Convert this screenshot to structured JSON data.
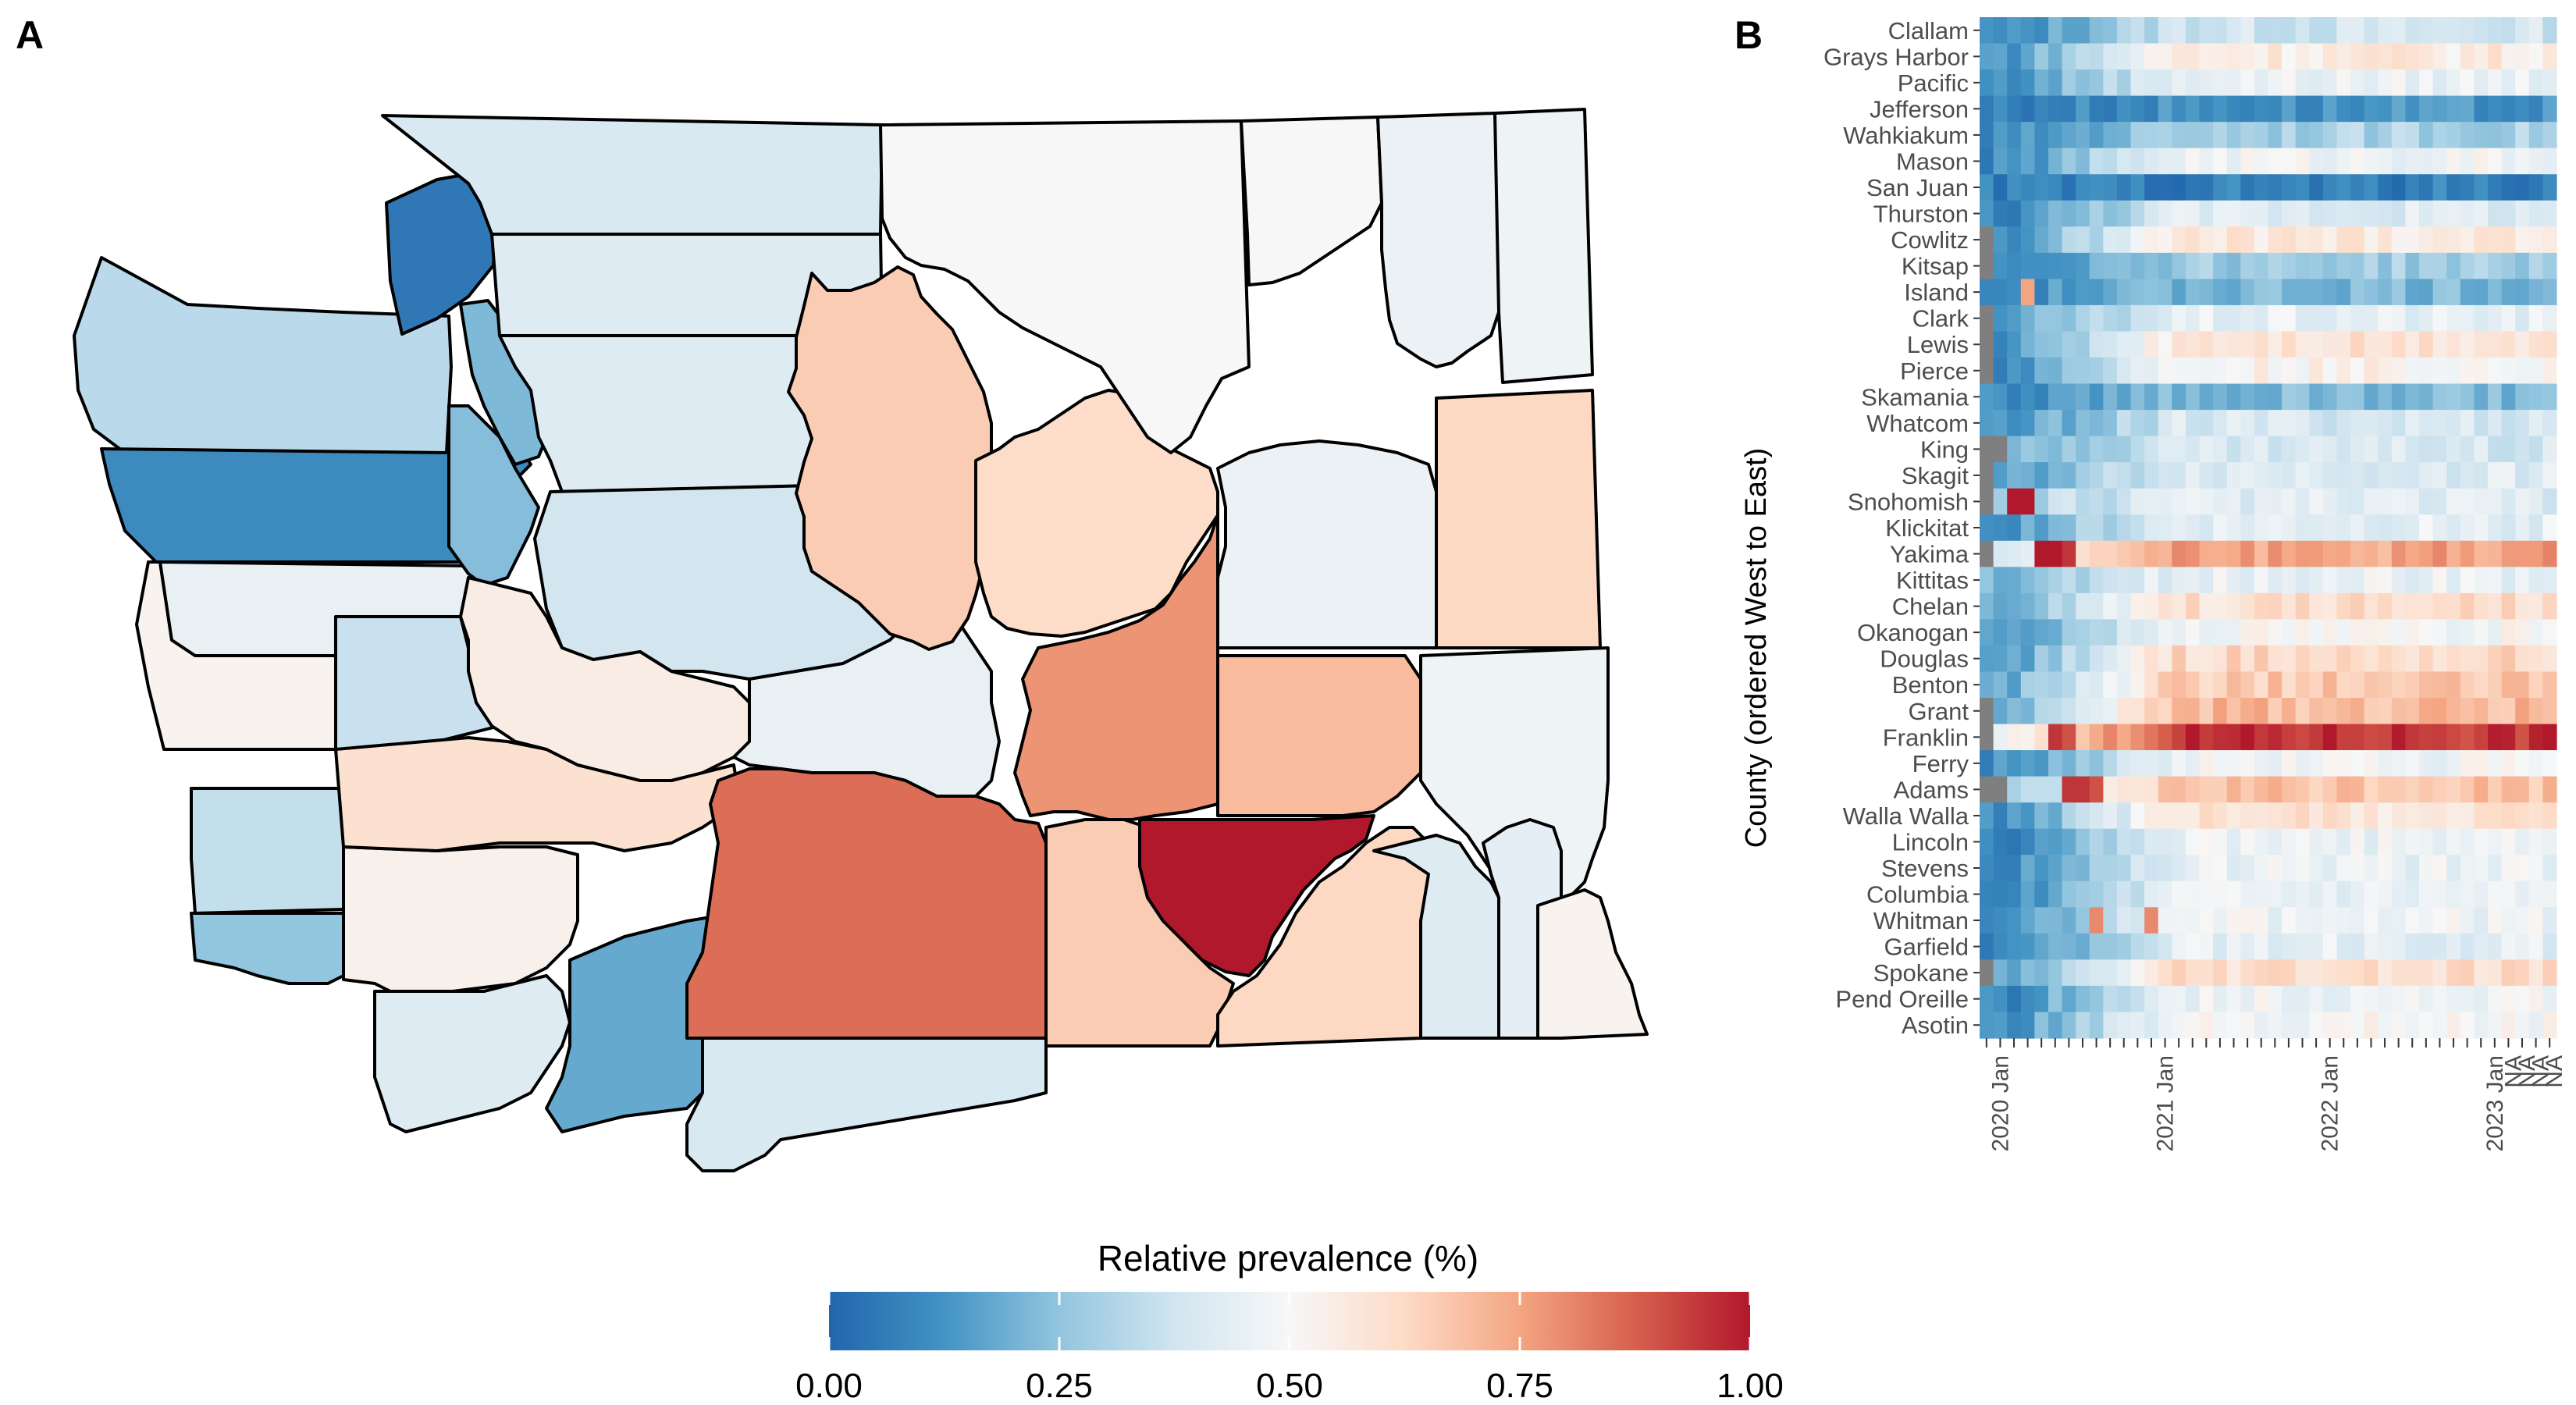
{
  "panels": {
    "a_label": "A",
    "b_label": "B"
  },
  "legend": {
    "title": "Relative prevalence (%)",
    "ticks": [
      "0.00",
      "0.25",
      "0.50",
      "0.75",
      "1.00"
    ],
    "colors": [
      "#2166ac",
      "#4393c3",
      "#92c5de",
      "#d1e5f0",
      "#f7f7f7",
      "#fddbc7",
      "#f4a582",
      "#d6604d",
      "#b2182b"
    ]
  },
  "chart_data": [
    {
      "type": "map",
      "panel": "A",
      "legend_title": "Relative prevalence (%)",
      "scale": [
        0,
        1
      ],
      "counties": [
        {
          "name": "Clallam",
          "value": 0.33
        },
        {
          "name": "Jefferson",
          "value": 0.1
        },
        {
          "name": "Grays Harbor",
          "value": 0.52
        },
        {
          "name": "Pacific",
          "value": 0.35
        },
        {
          "name": "Wahkiakum",
          "value": 0.25
        },
        {
          "name": "Mason",
          "value": 0.45
        },
        {
          "name": "Thurston",
          "value": 0.36
        },
        {
          "name": "Cowlitz",
          "value": 0.53
        },
        {
          "name": "Clark",
          "value": 0.42
        },
        {
          "name": "Lewis",
          "value": 0.6
        },
        {
          "name": "Skamania",
          "value": 0.18
        },
        {
          "name": "Kitsap",
          "value": 0.23
        },
        {
          "name": "Island",
          "value": 0.22
        },
        {
          "name": "San Juan",
          "value": 0.05
        },
        {
          "name": "Whatcom",
          "value": 0.4
        },
        {
          "name": "Skagit",
          "value": 0.42
        },
        {
          "name": "Snohomish",
          "value": 0.42
        },
        {
          "name": "King",
          "value": 0.38
        },
        {
          "name": "Pierce",
          "value": 0.55
        },
        {
          "name": "Kittitas",
          "value": 0.45
        },
        {
          "name": "Yakima",
          "value": 0.85
        },
        {
          "name": "Klickitat",
          "value": 0.4
        },
        {
          "name": "Chelan",
          "value": 0.66
        },
        {
          "name": "Douglas",
          "value": 0.62
        },
        {
          "name": "Okanogan",
          "value": 0.5
        },
        {
          "name": "Grant",
          "value": 0.78
        },
        {
          "name": "Benton",
          "value": 0.66
        },
        {
          "name": "Franklin",
          "value": 1.0
        },
        {
          "name": "Adams",
          "value": 0.7
        },
        {
          "name": "Ferry",
          "value": 0.5
        },
        {
          "name": "Stevens",
          "value": 0.46
        },
        {
          "name": "Pend Oreille",
          "value": 0.47
        },
        {
          "name": "Lincoln",
          "value": 0.46
        },
        {
          "name": "Spokane",
          "value": 0.63
        },
        {
          "name": "Whitman",
          "value": 0.47
        },
        {
          "name": "Walla Walla",
          "value": 0.63
        },
        {
          "name": "Columbia",
          "value": 0.42
        },
        {
          "name": "Garfield",
          "value": 0.44
        },
        {
          "name": "Asotin",
          "value": 0.52
        }
      ]
    },
    {
      "type": "heatmap",
      "panel": "B",
      "ylabel": "County (ordered West to East)",
      "counties": [
        "Clallam",
        "Grays Harbor",
        "Pacific",
        "Jefferson",
        "Wahkiakum",
        "Mason",
        "San Juan",
        "Thurston",
        "Cowlitz",
        "Kitsap",
        "Island",
        "Clark",
        "Lewis",
        "Pierce",
        "Skamania",
        "Whatcom",
        "King",
        "Skagit",
        "Snohomish",
        "Klickitat",
        "Yakima",
        "Kittitas",
        "Chelan",
        "Okanogan",
        "Douglas",
        "Benton",
        "Grant",
        "Franklin",
        "Ferry",
        "Adams",
        "Walla Walla",
        "Lincoln",
        "Stevens",
        "Columbia",
        "Whitman",
        "Garfield",
        "Spokane",
        "Pend Oreille",
        "Asotin"
      ],
      "x_ticks": [
        "2020 Jan",
        "2021 Jan",
        "2022 Jan",
        "2023 Jan",
        "NA",
        "NA",
        "NA",
        "NA"
      ],
      "x_start": "2019-12",
      "x_end": "2023-05",
      "na_months_by_county": {
        "Cowlitz": 1,
        "Kitsap": 1,
        "Clark": 1,
        "Lewis": 1,
        "Pierce": 1,
        "King": 2,
        "Skagit": 1,
        "Snohomish": 1,
        "Yakima": 1,
        "Grant": 1,
        "Franklin": 1,
        "Adams": 2,
        "Spokane": 1
      },
      "profiles": {
        "Clallam": {
          "early": 0.1,
          "late": 0.38
        },
        "Grays Harbor": {
          "early": 0.15,
          "late": 0.56
        },
        "Pacific": {
          "early": 0.12,
          "late": 0.46
        },
        "Jefferson": {
          "early": 0.08,
          "late": 0.12
        },
        "Wahkiakum": {
          "early": 0.1,
          "late": 0.3
        },
        "Mason": {
          "early": 0.1,
          "late": 0.48
        },
        "San Juan": {
          "early": 0.07,
          "late": 0.07
        },
        "Thurston": {
          "early": 0.1,
          "late": 0.42
        },
        "Cowlitz": {
          "early": 0.12,
          "late": 0.57
        },
        "Kitsap": {
          "early": 0.12,
          "late": 0.28
        },
        "Island": {
          "early": 0.1,
          "late": 0.22
        },
        "Clark": {
          "early": 0.15,
          "late": 0.44
        },
        "Lewis": {
          "early": 0.12,
          "late": 0.6
        },
        "Pierce": {
          "early": 0.12,
          "late": 0.52
        },
        "Skamania": {
          "early": 0.1,
          "late": 0.22
        },
        "Whatcom": {
          "early": 0.12,
          "late": 0.4
        },
        "King": {
          "early": 0.2,
          "late": 0.4
        },
        "Skagit": {
          "early": 0.15,
          "late": 0.42
        },
        "Snohomish": {
          "early": 0.3,
          "late": 0.42
        },
        "Klickitat": {
          "early": 0.15,
          "late": 0.44
        },
        "Yakima": {
          "early": 0.45,
          "late": 0.75
        },
        "Kittitas": {
          "early": 0.2,
          "late": 0.46
        },
        "Chelan": {
          "early": 0.18,
          "late": 0.6
        },
        "Okanogan": {
          "early": 0.15,
          "late": 0.5
        },
        "Douglas": {
          "early": 0.15,
          "late": 0.62
        },
        "Benton": {
          "early": 0.2,
          "late": 0.66
        },
        "Grant": {
          "early": 0.2,
          "late": 0.7
        },
        "Franklin": {
          "early": 0.5,
          "late": 0.95
        },
        "Ferry": {
          "early": 0.12,
          "late": 0.48
        },
        "Adams": {
          "early": 0.25,
          "late": 0.68
        },
        "Walla Walla": {
          "early": 0.12,
          "late": 0.58
        },
        "Lincoln": {
          "early": 0.1,
          "late": 0.46
        },
        "Stevens": {
          "early": 0.1,
          "late": 0.46
        },
        "Columbia": {
          "early": 0.1,
          "late": 0.44
        },
        "Whitman": {
          "early": 0.12,
          "late": 0.47
        },
        "Garfield": {
          "early": 0.1,
          "late": 0.44
        },
        "Spokane": {
          "early": 0.15,
          "late": 0.6
        },
        "Pend Oreille": {
          "early": 0.1,
          "late": 0.47
        },
        "Asotin": {
          "early": 0.12,
          "late": 0.5
        }
      },
      "highlights": [
        {
          "county": "Island",
          "month": "2020-03",
          "value": 0.75
        },
        {
          "county": "Snohomish",
          "month": "2020-02",
          "value": 1.0
        },
        {
          "county": "Snohomish",
          "month": "2020-03",
          "value": 1.0
        },
        {
          "county": "Yakima",
          "month": "2020-04",
          "value": 1.0
        },
        {
          "county": "Yakima",
          "month": "2020-05",
          "value": 1.0
        },
        {
          "county": "Yakima",
          "month": "2020-06",
          "value": 0.95
        },
        {
          "county": "Franklin",
          "month": "2020-05",
          "value": 0.95
        },
        {
          "county": "Franklin",
          "month": "2020-06",
          "value": 0.9
        },
        {
          "county": "Adams",
          "month": "2020-06",
          "value": 0.95
        },
        {
          "county": "Adams",
          "month": "2020-07",
          "value": 0.95
        },
        {
          "county": "Adams",
          "month": "2020-08",
          "value": 0.9
        },
        {
          "county": "Whitman",
          "month": "2020-08",
          "value": 0.8
        },
        {
          "county": "Whitman",
          "month": "2020-12",
          "value": 0.8
        }
      ]
    }
  ]
}
